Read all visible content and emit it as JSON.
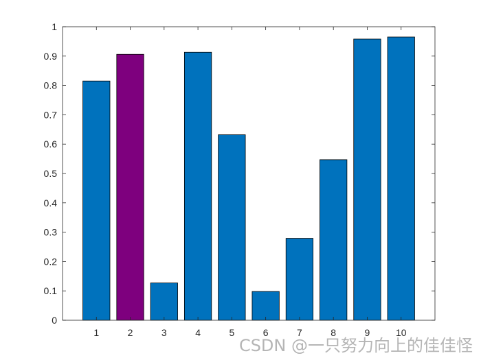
{
  "chart_data": {
    "type": "bar",
    "categories": [
      "1",
      "2",
      "3",
      "4",
      "5",
      "6",
      "7",
      "8",
      "9",
      "10"
    ],
    "values": [
      0.815,
      0.906,
      0.127,
      0.913,
      0.632,
      0.098,
      0.279,
      0.547,
      0.958,
      0.965
    ],
    "highlight_index": 1,
    "colors": {
      "bar": "#0072BD",
      "highlight": "#7E007E",
      "bar_edge": "#000000",
      "axis": "#262626"
    },
    "ylim": [
      0,
      1
    ],
    "yticks": [
      0,
      0.1,
      0.2,
      0.3,
      0.4,
      0.5,
      0.6,
      0.7,
      0.8,
      0.9,
      1
    ],
    "ytick_labels": [
      "0",
      "0.1",
      "0.2",
      "0.3",
      "0.4",
      "0.5",
      "0.6",
      "0.7",
      "0.8",
      "0.9",
      "1"
    ],
    "grid": false,
    "box": true
  },
  "watermark": "CSDN @一只努力向上的佳佳怪"
}
